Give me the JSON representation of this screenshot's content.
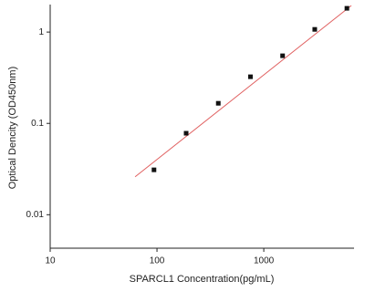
{
  "chart_data": {
    "type": "scatter",
    "x_label": "SPARCL1 Concentration(pg/mL)",
    "y_label": "Optical Dencity (OD450nm)",
    "x_log": true,
    "y_log": true,
    "xlim": [
      10,
      7000
    ],
    "ylim": [
      0.0043,
      2
    ],
    "xticks": [
      10,
      100,
      1000
    ],
    "yticks": [
      1,
      0.1,
      0.01
    ],
    "series": [
      {
        "color": "#111111",
        "x": [
          93.75,
          187.5,
          375,
          750,
          1500,
          3000,
          6000
        ],
        "values": [
          0.031,
          0.078,
          0.166,
          0.324,
          0.55,
          1.07,
          1.82
        ]
      }
    ],
    "fit": {
      "color": "#e06060",
      "x": [
        62.4,
        6600
      ],
      "values": [
        0.026,
        1.95
      ]
    }
  }
}
